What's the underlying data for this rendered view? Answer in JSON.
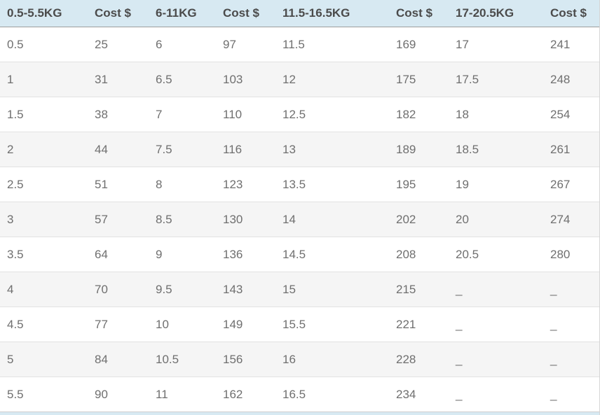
{
  "colors": {
    "header_bg": "#d7e9f2",
    "row_alt_bg": "#f5f5f5",
    "header_text": "#4b4b4b",
    "cell_text": "#6f6f6f",
    "header_rule": "#9d9d9d",
    "row_rule": "#e2e2e2"
  },
  "table": {
    "header": [
      "0.5-5.5KG",
      "Cost $",
      "6-11KG",
      "Cost $",
      "11.5-16.5KG",
      "Cost $",
      "17-20.5KG",
      "Cost $"
    ],
    "rows": [
      [
        "0.5",
        "25",
        "6",
        "97",
        "11.5",
        "169",
        "17",
        "241"
      ],
      [
        "1",
        "31",
        "6.5",
        "103",
        "12",
        "175",
        "17.5",
        "248"
      ],
      [
        "1.5",
        "38",
        "7",
        "110",
        "12.5",
        "182",
        "18",
        "254"
      ],
      [
        "2",
        "44",
        "7.5",
        "116",
        "13",
        "189",
        "18.5",
        "261"
      ],
      [
        "2.5",
        "51",
        "8",
        "123",
        "13.5",
        "195",
        "19",
        "267"
      ],
      [
        "3",
        "57",
        "8.5",
        "130",
        "14",
        "202",
        "20",
        "274"
      ],
      [
        "3.5",
        "64",
        "9",
        "136",
        "14.5",
        "208",
        "20.5",
        "280"
      ],
      [
        "4",
        "70",
        "9.5",
        "143",
        "15",
        "215",
        "_",
        "_"
      ],
      [
        "4.5",
        "77",
        "10",
        "149",
        "15.5",
        "221",
        "_",
        "_"
      ],
      [
        "5",
        "84",
        "10.5",
        "156",
        "16",
        "228",
        "_",
        "_"
      ],
      [
        "5.5",
        "90",
        "11",
        "162",
        "16.5",
        "234",
        "_",
        "_"
      ]
    ]
  }
}
